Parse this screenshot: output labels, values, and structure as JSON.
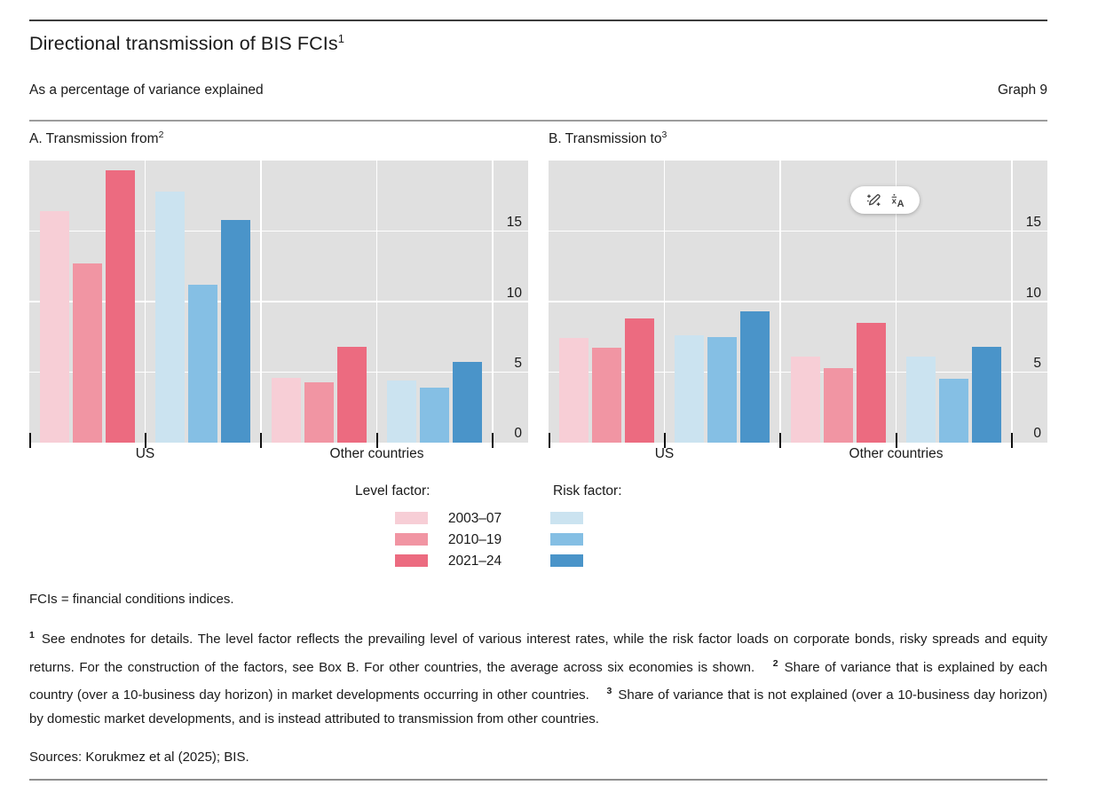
{
  "header": {
    "title": "Directional transmission of BIS FCIs",
    "title_sup": "1",
    "subtitle": "As a percentage of variance explained",
    "graph_label": "Graph 9"
  },
  "chart_data": [
    {
      "type": "bar",
      "title": "A. Transmission from",
      "title_sup": "2",
      "ylabel": "",
      "ylim": [
        0,
        20
      ],
      "yticks": [
        0,
        5,
        10,
        15
      ],
      "grid": true,
      "plot_bg": "#e0e0e0",
      "categories": [
        "US",
        "Other countries"
      ],
      "series": [
        {
          "factor": "Level factor",
          "period": "2003–07",
          "color": "#f7ced6",
          "values": [
            16.4,
            4.6
          ]
        },
        {
          "factor": "Level factor",
          "period": "2010–19",
          "color": "#f195a3",
          "values": [
            12.7,
            4.3
          ]
        },
        {
          "factor": "Level factor",
          "period": "2021–24",
          "color": "#ec6b80",
          "values": [
            19.3,
            6.8
          ]
        },
        {
          "factor": "Risk factor",
          "period": "2003–07",
          "color": "#cbe3f0",
          "values": [
            17.8,
            4.4
          ]
        },
        {
          "factor": "Risk factor",
          "period": "2010–19",
          "color": "#85bfe4",
          "values": [
            11.2,
            3.9
          ]
        },
        {
          "factor": "Risk factor",
          "period": "2021–24",
          "color": "#4a94c9",
          "values": [
            15.8,
            5.7
          ]
        }
      ]
    },
    {
      "type": "bar",
      "title": "B. Transmission to",
      "title_sup": "3",
      "ylabel": "",
      "ylim": [
        0,
        20
      ],
      "yticks": [
        0,
        5,
        10,
        15
      ],
      "grid": true,
      "plot_bg": "#e0e0e0",
      "categories": [
        "US",
        "Other countries"
      ],
      "series": [
        {
          "factor": "Level factor",
          "period": "2003–07",
          "color": "#f7ced6",
          "values": [
            7.4,
            6.1
          ]
        },
        {
          "factor": "Level factor",
          "period": "2010–19",
          "color": "#f195a3",
          "values": [
            6.7,
            5.3
          ]
        },
        {
          "factor": "Level factor",
          "period": "2021–24",
          "color": "#ec6b80",
          "values": [
            8.8,
            8.5
          ]
        },
        {
          "factor": "Risk factor",
          "period": "2003–07",
          "color": "#cbe3f0",
          "values": [
            7.6,
            6.1
          ]
        },
        {
          "factor": "Risk factor",
          "period": "2010–19",
          "color": "#85bfe4",
          "values": [
            7.5,
            4.5
          ]
        },
        {
          "factor": "Risk factor",
          "period": "2021–24",
          "color": "#4a94c9",
          "values": [
            9.3,
            6.8
          ]
        }
      ]
    }
  ],
  "legend": {
    "level_header": "Level factor:",
    "risk_header": "Risk factor:",
    "periods": [
      "2003–07",
      "2010–19",
      "2021–24"
    ],
    "level_colors": [
      "#f7ced6",
      "#f195a3",
      "#ec6b80"
    ],
    "risk_colors": [
      "#cbe3f0",
      "#85bfe4",
      "#4a94c9"
    ]
  },
  "overlay": {
    "icons": [
      "magic-pen-icon",
      "translate-icon"
    ]
  },
  "notes": {
    "fci_def": "FCIs = financial conditions indices.",
    "fn1_sup": "1",
    "fn1": "See endnotes for details. The level factor reflects the prevailing level of various interest rates, while the risk factor loads on corporate bonds, risky spreads and equity returns. For the construction of the factors, see Box B. For other countries, the average across six economies is shown.",
    "fn2_sup": "2",
    "fn2": "Share of variance that is explained by each country (over a 10-business day horizon) in market developments occurring in other countries.",
    "fn3_sup": "3",
    "fn3": "Share of variance that is not explained (over a 10-business day horizon) by domestic market developments, and is instead attributed to transmission from other countries.",
    "sources": "Sources: Korukmez et al (2025); BIS."
  }
}
